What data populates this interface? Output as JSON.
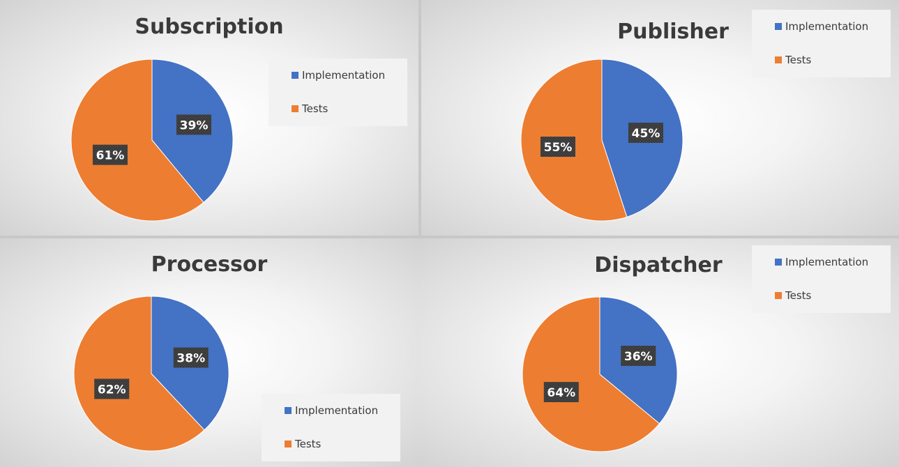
{
  "chart_data": [
    {
      "type": "pie",
      "title": "Subscription",
      "categories": [
        "Implementation",
        "Tests"
      ],
      "values": [
        39,
        61
      ],
      "labels": [
        "39%",
        "61%"
      ],
      "colors": [
        "#4472C4",
        "#ED7D31"
      ],
      "legend": "top-right"
    },
    {
      "type": "pie",
      "title": "Publisher",
      "categories": [
        "Implementation",
        "Tests"
      ],
      "values": [
        45,
        55
      ],
      "labels": [
        "45%",
        "55%"
      ],
      "colors": [
        "#4472C4",
        "#ED7D31"
      ],
      "legend": "top-right"
    },
    {
      "type": "pie",
      "title": "Processor",
      "categories": [
        "Implementation",
        "Tests"
      ],
      "values": [
        38,
        62
      ],
      "labels": [
        "38%",
        "62%"
      ],
      "colors": [
        "#4472C4",
        "#ED7D31"
      ],
      "legend": "bottom-right"
    },
    {
      "type": "pie",
      "title": "Dispatcher",
      "categories": [
        "Implementation",
        "Tests"
      ],
      "values": [
        36,
        64
      ],
      "labels": [
        "36%",
        "64%"
      ],
      "colors": [
        "#4472C4",
        "#ED7D31"
      ],
      "legend": "top-right"
    }
  ]
}
